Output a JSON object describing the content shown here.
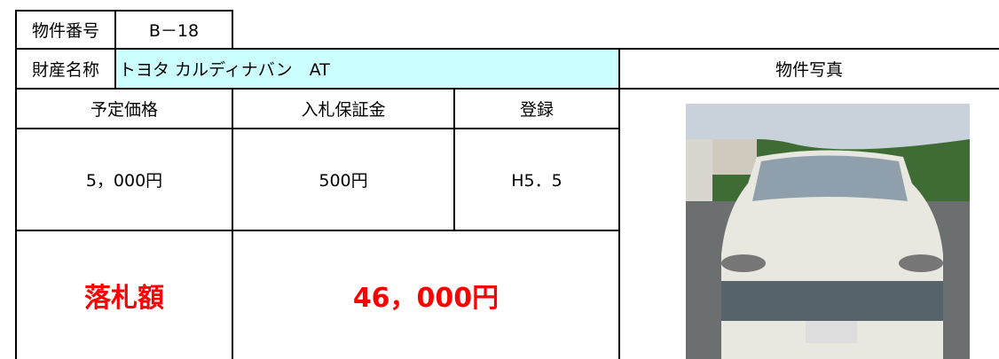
{
  "header": {
    "id_label": "物件番号",
    "id_value": "B－18"
  },
  "property": {
    "name_label": "財産名称",
    "name_value": "トヨタ カルディナバン　AT",
    "photo_label": "物件写真"
  },
  "table": {
    "headers": [
      "予定価格",
      "入札保証金",
      "登録"
    ],
    "values": [
      "5，000円",
      "500円",
      "H5．5"
    ]
  },
  "result": {
    "label": "落札額",
    "value": "46，000円"
  }
}
